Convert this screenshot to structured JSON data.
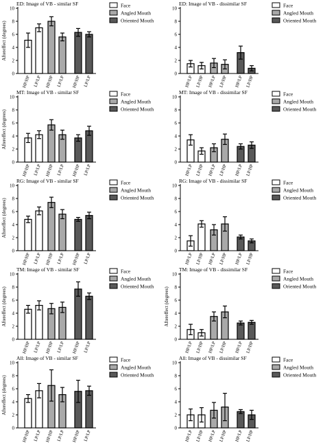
{
  "figure": {
    "legend_labels": [
      "Face",
      "Angled Mouth",
      "Oriented Mouth"
    ],
    "group_colors": [
      "#ffffff",
      "#a9a9a9",
      "#595959"
    ],
    "bar_stroke": "#000000"
  },
  "chart_data": [
    {
      "type": "bar",
      "title": "ED: Image of VB - similar SF",
      "ylabel": "Aftereffect (degrees)",
      "ylim": [
        0,
        10
      ],
      "yticks": [
        0,
        2,
        4,
        6,
        8,
        10
      ],
      "categories": [
        "HP/HP",
        "LP/LP",
        "HP/HP",
        "LP/LP",
        "HP/HP",
        "LP/LP"
      ],
      "groups": [
        0,
        0,
        1,
        1,
        2,
        2
      ],
      "values": [
        5.1,
        7.0,
        8.0,
        5.6,
        6.3,
        6.0
      ],
      "errors": [
        1.1,
        0.6,
        0.7,
        0.6,
        0.6,
        0.4
      ],
      "legend": "top-right"
    },
    {
      "type": "bar",
      "title": "ED: Image of VB - dissimilar SF",
      "ylabel": "",
      "ylim": [
        0,
        10
      ],
      "yticks": [
        0,
        2,
        4,
        6,
        8,
        10
      ],
      "categories": [
        "HP/LP",
        "LP/HP",
        "HP/LP",
        "LP/HP",
        "HP/LP",
        "LP/HP"
      ],
      "groups": [
        0,
        0,
        1,
        1,
        2,
        2
      ],
      "values": [
        1.5,
        1.2,
        1.6,
        1.4,
        3.2,
        0.8
      ],
      "errors": [
        0.5,
        0.5,
        0.7,
        0.7,
        1.0,
        0.4
      ],
      "legend": "top-right"
    },
    {
      "type": "bar",
      "title": "MT: Image of VB - similar SF",
      "ylabel": "Aftereffect (degrees)",
      "ylim": [
        0,
        10
      ],
      "yticks": [
        0,
        2,
        4,
        6,
        8,
        10
      ],
      "categories": [
        "HP/HP",
        "LP/LP",
        "HP/HP",
        "LP/LP",
        "HP/HP",
        "LP/LP"
      ],
      "groups": [
        0,
        0,
        1,
        1,
        2,
        2
      ],
      "values": [
        3.7,
        4.2,
        5.7,
        4.2,
        3.7,
        4.8
      ],
      "errors": [
        0.7,
        0.6,
        0.8,
        0.7,
        0.5,
        0.7
      ],
      "legend": "top-right"
    },
    {
      "type": "bar",
      "title": "MT: Image of VB - dissimilar SF",
      "ylabel": "",
      "ylim": [
        0,
        10
      ],
      "yticks": [
        0,
        2,
        4,
        6,
        8,
        10
      ],
      "categories": [
        "HP/LP",
        "LP/HP",
        "HP/LP",
        "LP/HP",
        "HP/LP",
        "LP/HP"
      ],
      "groups": [
        0,
        0,
        1,
        1,
        2,
        2
      ],
      "values": [
        3.4,
        1.7,
        2.2,
        3.5,
        2.4,
        2.6
      ],
      "errors": [
        0.8,
        0.5,
        0.6,
        0.8,
        0.4,
        0.5
      ],
      "legend": "top-right"
    },
    {
      "type": "bar",
      "title": "RG: Image of VB - similar SF",
      "ylabel": "Aftereffect (degrees)",
      "ylim": [
        0,
        10
      ],
      "yticks": [
        0,
        2,
        4,
        6,
        8,
        10
      ],
      "categories": [
        "HP/HP",
        "LP/LP",
        "HP/HP",
        "LP/LP",
        "HP/HP",
        "LP/LP"
      ],
      "groups": [
        0,
        0,
        1,
        1,
        2,
        2
      ],
      "values": [
        4.8,
        6.1,
        7.4,
        5.6,
        4.8,
        5.4
      ],
      "errors": [
        0.5,
        0.6,
        0.8,
        0.7,
        0.3,
        0.5
      ],
      "legend": "top-right"
    },
    {
      "type": "bar",
      "title": "RG: Image of VB - dissimilar SF",
      "ylabel": "",
      "ylim": [
        0,
        10
      ],
      "yticks": [
        0,
        2,
        4,
        6,
        8,
        10
      ],
      "categories": [
        "HP/LP",
        "LP/HP",
        "HP/LP",
        "LP/HP",
        "HP/LP",
        "LP/HP"
      ],
      "groups": [
        0,
        0,
        1,
        1,
        2,
        2
      ],
      "values": [
        1.5,
        4.1,
        3.2,
        4.1,
        2.1,
        1.5
      ],
      "errors": [
        0.8,
        0.5,
        0.8,
        1.1,
        0.3,
        0.3
      ],
      "legend": "top-right"
    },
    {
      "type": "bar",
      "title": "TM: Image of VB - similar SF",
      "ylabel": "Aftereffect (degrees)",
      "ylim": [
        0,
        10
      ],
      "yticks": [
        0,
        2,
        4,
        6,
        8,
        10
      ],
      "categories": [
        "HP/HP",
        "LP/LP",
        "HP/HP",
        "LP/LP",
        "HP/HP",
        "LP/LP"
      ],
      "groups": [
        0,
        0,
        1,
        1,
        2,
        2
      ],
      "values": [
        4.6,
        5.2,
        4.7,
        4.9,
        7.7,
        6.6
      ],
      "errors": [
        0.6,
        0.7,
        0.8,
        0.8,
        1.1,
        0.5
      ],
      "legend": "top-right"
    },
    {
      "type": "bar",
      "title": "TM: Image of VB - dissimilar SF",
      "ylabel": "Aftereffect (degrees)",
      "ylim": [
        0,
        10
      ],
      "yticks": [
        0,
        2,
        4,
        6,
        8,
        10
      ],
      "categories": [
        "HP/LP",
        "LP/HP",
        "HP/LP",
        "LP/HP",
        "HP/LP",
        "LP/HP"
      ],
      "groups": [
        0,
        0,
        1,
        1,
        2,
        2
      ],
      "values": [
        1.5,
        1.0,
        3.5,
        4.2,
        2.5,
        2.6
      ],
      "errors": [
        0.8,
        0.5,
        0.7,
        0.9,
        0.3,
        0.3
      ],
      "legend": "top-right"
    },
    {
      "type": "bar",
      "title": "All: Image of VB - similar SF",
      "ylabel": "Aftereffect (degrees)",
      "ylim": [
        0,
        10
      ],
      "yticks": [
        0,
        2,
        4,
        6,
        8,
        10
      ],
      "categories": [
        "HP/HP",
        "LP/LP",
        "HP/HP",
        "LP/LP",
        "HP/HP",
        "LP/LP"
      ],
      "groups": [
        0,
        0,
        1,
        1,
        2,
        2
      ],
      "values": [
        4.5,
        5.7,
        6.5,
        5.1,
        5.6,
        5.7
      ],
      "errors": [
        0.6,
        1.1,
        2.4,
        1.1,
        1.7,
        0.7
      ],
      "legend": "top-right"
    },
    {
      "type": "bar",
      "title": "All: Image of VB - dissimilar SF",
      "ylabel": "",
      "ylim": [
        0,
        10
      ],
      "yticks": [
        0,
        2,
        4,
        6,
        8,
        10
      ],
      "categories": [
        "HP/LP",
        "LP/HP",
        "HP/LP",
        "LP/HP",
        "HP/LP",
        "LP/HP"
      ],
      "groups": [
        0,
        0,
        1,
        1,
        2,
        2
      ],
      "values": [
        2.0,
        2.0,
        2.7,
        3.2,
        2.5,
        2.0
      ],
      "errors": [
        0.9,
        1.1,
        1.2,
        2.1,
        0.3,
        0.7
      ],
      "legend": "top-right"
    }
  ]
}
